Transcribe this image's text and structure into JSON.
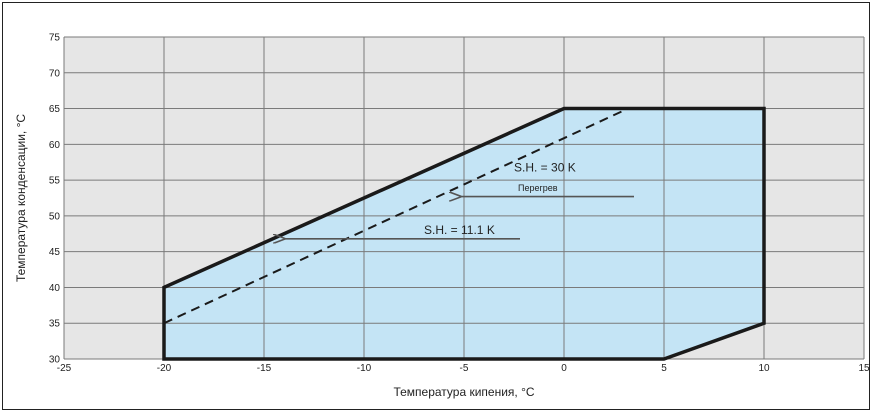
{
  "chart_data": {
    "type": "area",
    "title": "",
    "xlabel": "Температура кипения, °C",
    "ylabel": "Температура конденсации, °C",
    "xlim": [
      -25,
      15
    ],
    "ylim": [
      30,
      75
    ],
    "x_ticks": [
      -25,
      -20,
      -15,
      -10,
      -5,
      0,
      5,
      10,
      15
    ],
    "y_ticks": [
      30,
      35,
      40,
      45,
      50,
      55,
      60,
      65,
      70,
      75
    ],
    "grid": true,
    "colors": {
      "plot_background": "#e6e6e6",
      "envelope_fill": "#c4e4f5",
      "envelope_stroke": "#1a1a1a",
      "grid": "#7a7a7a",
      "arrow": "#555555"
    },
    "envelope": {
      "x": [
        -20,
        -20,
        0,
        10,
        10,
        5
      ],
      "y": [
        30,
        40,
        65,
        65,
        35,
        30
      ]
    },
    "sh30_boundary": {
      "x": [
        -20,
        3.2
      ],
      "y": [
        35,
        65
      ]
    },
    "annotations": [
      {
        "text": "S.H. = 30 K",
        "x": -2.5,
        "y": 56.2
      },
      {
        "text": "Перегрев",
        "x": -2.3,
        "y": 53.5
      },
      {
        "text": "S.H. = 11.1 K",
        "x": -7,
        "y": 47.5
      }
    ],
    "arrows": [
      {
        "from_x": 3.5,
        "to_x": -5.2,
        "y": 52.7
      },
      {
        "from_x": -2.2,
        "to_x": -14.0,
        "y": 46.8
      }
    ]
  }
}
